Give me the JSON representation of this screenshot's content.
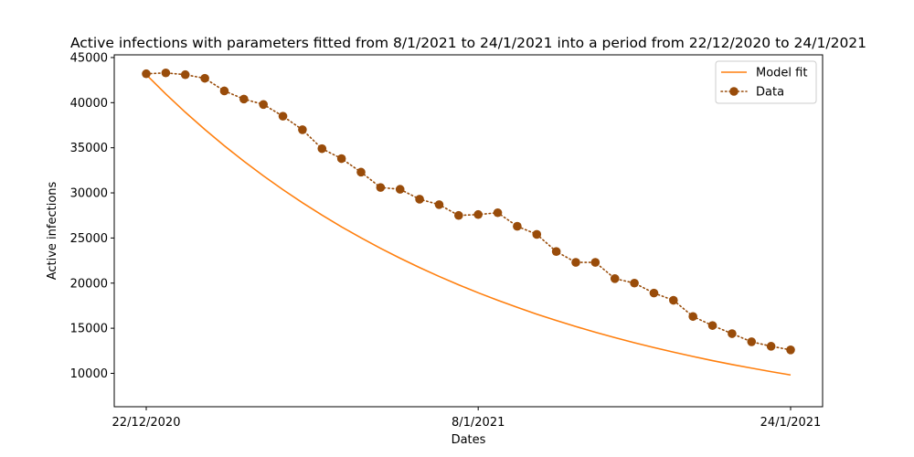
{
  "chart_data": {
    "type": "line",
    "title": "Active infections with parameters fitted from 8/1/2021 to 24/1/2021 into a period from 22/12/2020 to 24/1/2021",
    "xlabel": "Dates",
    "ylabel": "Active infections",
    "x": [
      "22/12/2020",
      "23/12/2020",
      "24/12/2020",
      "25/12/2020",
      "26/12/2020",
      "27/12/2020",
      "28/12/2020",
      "29/12/2020",
      "30/12/2020",
      "31/12/2020",
      "1/1/2021",
      "2/1/2021",
      "3/1/2021",
      "4/1/2021",
      "5/1/2021",
      "6/1/2021",
      "7/1/2021",
      "8/1/2021",
      "9/1/2021",
      "10/1/2021",
      "11/1/2021",
      "12/1/2021",
      "13/1/2021",
      "14/1/2021",
      "15/1/2021",
      "16/1/2021",
      "17/1/2021",
      "18/1/2021",
      "19/1/2021",
      "20/1/2021",
      "21/1/2021",
      "22/1/2021",
      "23/1/2021",
      "24/1/2021"
    ],
    "xticks": [
      "22/12/2020",
      "8/1/2021",
      "24/1/2021"
    ],
    "yticks": [
      10000,
      15000,
      20000,
      25000,
      30000,
      35000,
      40000,
      45000
    ],
    "ylim": [
      6300,
      45300
    ],
    "grid": false,
    "legend_position": "top-right",
    "series": [
      {
        "name": "Model fit",
        "style": "solid",
        "color": "#ff7f0e",
        "values": [
          43100,
          40960,
          38940,
          37030,
          35220,
          33510,
          31890,
          30360,
          28910,
          27540,
          26240,
          25020,
          23860,
          22760,
          21720,
          20740,
          19810,
          18930,
          18100,
          17310,
          16560,
          15860,
          15190,
          14560,
          13960,
          13390,
          12860,
          12350,
          11870,
          11410,
          10980,
          10580,
          10190,
          9820
        ]
      },
      {
        "name": "Data",
        "style": "dotted",
        "marker": "circle",
        "color": "#994c0a",
        "values": [
          43200,
          43300,
          43100,
          42700,
          41300,
          40400,
          39800,
          38500,
          37000,
          34900,
          33800,
          32300,
          30600,
          30400,
          29300,
          28700,
          27500,
          27600,
          27800,
          26300,
          25400,
          23500,
          22300,
          22300,
          20500,
          20000,
          18900,
          18100,
          16300,
          15300,
          14400,
          13500,
          13000,
          12600
        ]
      }
    ]
  }
}
